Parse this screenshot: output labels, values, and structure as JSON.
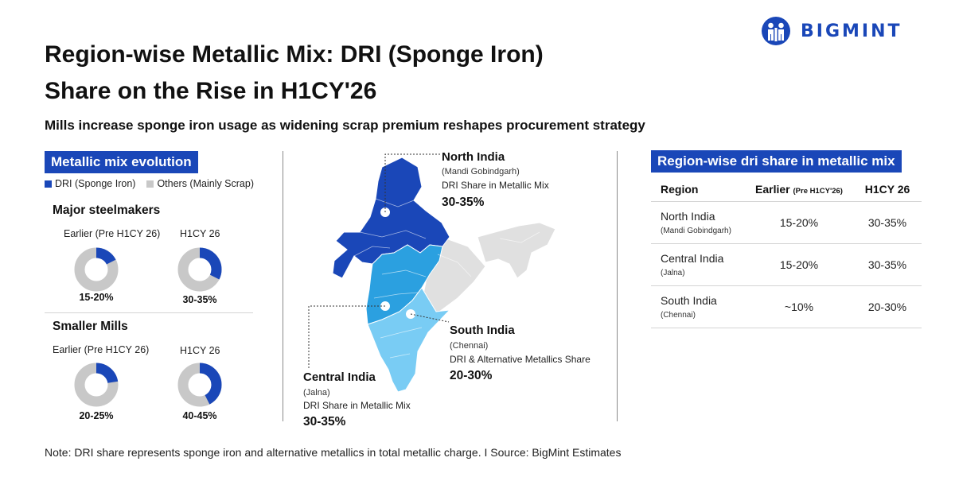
{
  "logo": {
    "text": "BIGMINT",
    "color": "#1a47b8"
  },
  "title": {
    "line1": "Region-wise Metallic Mix: DRI (Sponge Iron)",
    "line2": "Share on the Rise in H1CY'26"
  },
  "subtitle": "Mills increase sponge iron usage as widening scrap premium reshapes procurement strategy",
  "left_panel": {
    "tag": "Metallic mix evolution",
    "legend": [
      {
        "label": "DRI (Sponge Iron)",
        "color": "#1a47b8"
      },
      {
        "label": "Others (Mainly Scrap)",
        "color": "#c8c8c8"
      }
    ]
  },
  "map": {
    "colors": {
      "north": "#1a47b8",
      "central": "#2ba0e0",
      "south": "#79ccf4",
      "rest": "#e0e0e0"
    },
    "callouts": {
      "north": {
        "name": "North India",
        "city": "(Mandi Gobindgarh)",
        "desc": "DRI Share in Metallic Mix",
        "value": "30-35%"
      },
      "central": {
        "name": "Central India",
        "city": "(Jalna)",
        "desc": "DRI Share in Metallic Mix",
        "value": "30-35%"
      },
      "south": {
        "name": "South India",
        "city": "(Chennai)",
        "desc": "DRI & Alternative Metallics Share",
        "value": "20-30%"
      }
    }
  },
  "right_panel": {
    "tag": "Region-wise dri share in metallic mix",
    "headers": {
      "region": "Region",
      "earlier": "Earlier",
      "earlier_sub": "(Pre H1CY'26)",
      "h1": "H1CY 26"
    },
    "rows": [
      {
        "region": "North India",
        "city": "(Mandi Gobindgarh)",
        "earlier": "15-20%",
        "h1": "30-35%"
      },
      {
        "region": "Central India",
        "city": "(Jalna)",
        "earlier": "15-20%",
        "h1": "30-35%"
      },
      {
        "region": "South India",
        "city": "(Chennai)",
        "earlier": "~10%",
        "h1": "20-30%"
      }
    ]
  },
  "chart_data": [
    {
      "type": "pie",
      "title": "Major steelmakers",
      "series_labels": [
        "DRI (Sponge Iron)",
        "Others (Mainly Scrap)"
      ],
      "charts": [
        {
          "label": "Earlier (Pre H1CY 26)",
          "value_label": "15-20%",
          "dri_share": 17.5
        },
        {
          "label": "H1CY 26",
          "value_label": "30-35%",
          "dri_share": 32.5
        }
      ]
    },
    {
      "type": "pie",
      "title": "Smaller Mills",
      "series_labels": [
        "DRI (Sponge Iron)",
        "Others (Mainly Scrap)"
      ],
      "charts": [
        {
          "label": "Earlier (Pre H1CY 26)",
          "value_label": "20-25%",
          "dri_share": 22.5
        },
        {
          "label": "H1CY 26",
          "value_label": "40-45%",
          "dri_share": 42.5
        }
      ]
    },
    {
      "type": "table",
      "title": "Region-wise dri share in metallic mix",
      "columns": [
        "Region",
        "Earlier (Pre H1CY'26)",
        "H1CY 26"
      ],
      "rows": [
        [
          "North India (Mandi Gobindgarh)",
          "15-20%",
          "30-35%"
        ],
        [
          "Central India (Jalna)",
          "15-20%",
          "30-35%"
        ],
        [
          "South India (Chennai)",
          "~10%",
          "20-30%"
        ]
      ]
    }
  ],
  "note": "Note: DRI share represents sponge iron and alternative metallics in total metallic charge.  I  Source: BigMint Estimates"
}
